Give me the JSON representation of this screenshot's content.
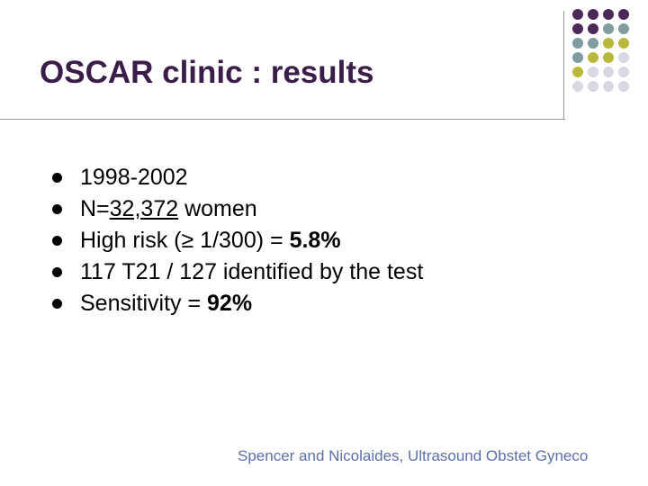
{
  "slide": {
    "title": "OSCAR clinic : results",
    "bullets": [
      {
        "parts": [
          {
            "text": "1998-2002"
          }
        ]
      },
      {
        "parts": [
          {
            "text": "N="
          },
          {
            "text": "32,372",
            "underline": true
          },
          {
            "text": " women"
          }
        ]
      },
      {
        "parts": [
          {
            "text": "High risk (≥ 1/300) = "
          },
          {
            "text": "5.8%",
            "bold": true
          }
        ]
      },
      {
        "parts": [
          {
            "text": "117 T21 / 127 identified by the test"
          }
        ]
      },
      {
        "parts": [
          {
            "text": " Sensitivity = "
          },
          {
            "text": "92%",
            "bold": true
          }
        ]
      }
    ],
    "citation": "Spencer and Nicolaides, Ultrasound Obstet Gyneco"
  },
  "decoration": {
    "dot_colors": {
      "P": "#4b2a5a",
      "G": "#7f9ca0",
      "Y": "#b8b93a",
      "L": "#d8d8e2"
    },
    "dot_rows": [
      "PPPP",
      "PPGG",
      "GGYY",
      "GYYL",
      "YLLL",
      "LLLL"
    ],
    "title_color": "#3a1e49",
    "citation_color": "#5c6fa8"
  }
}
